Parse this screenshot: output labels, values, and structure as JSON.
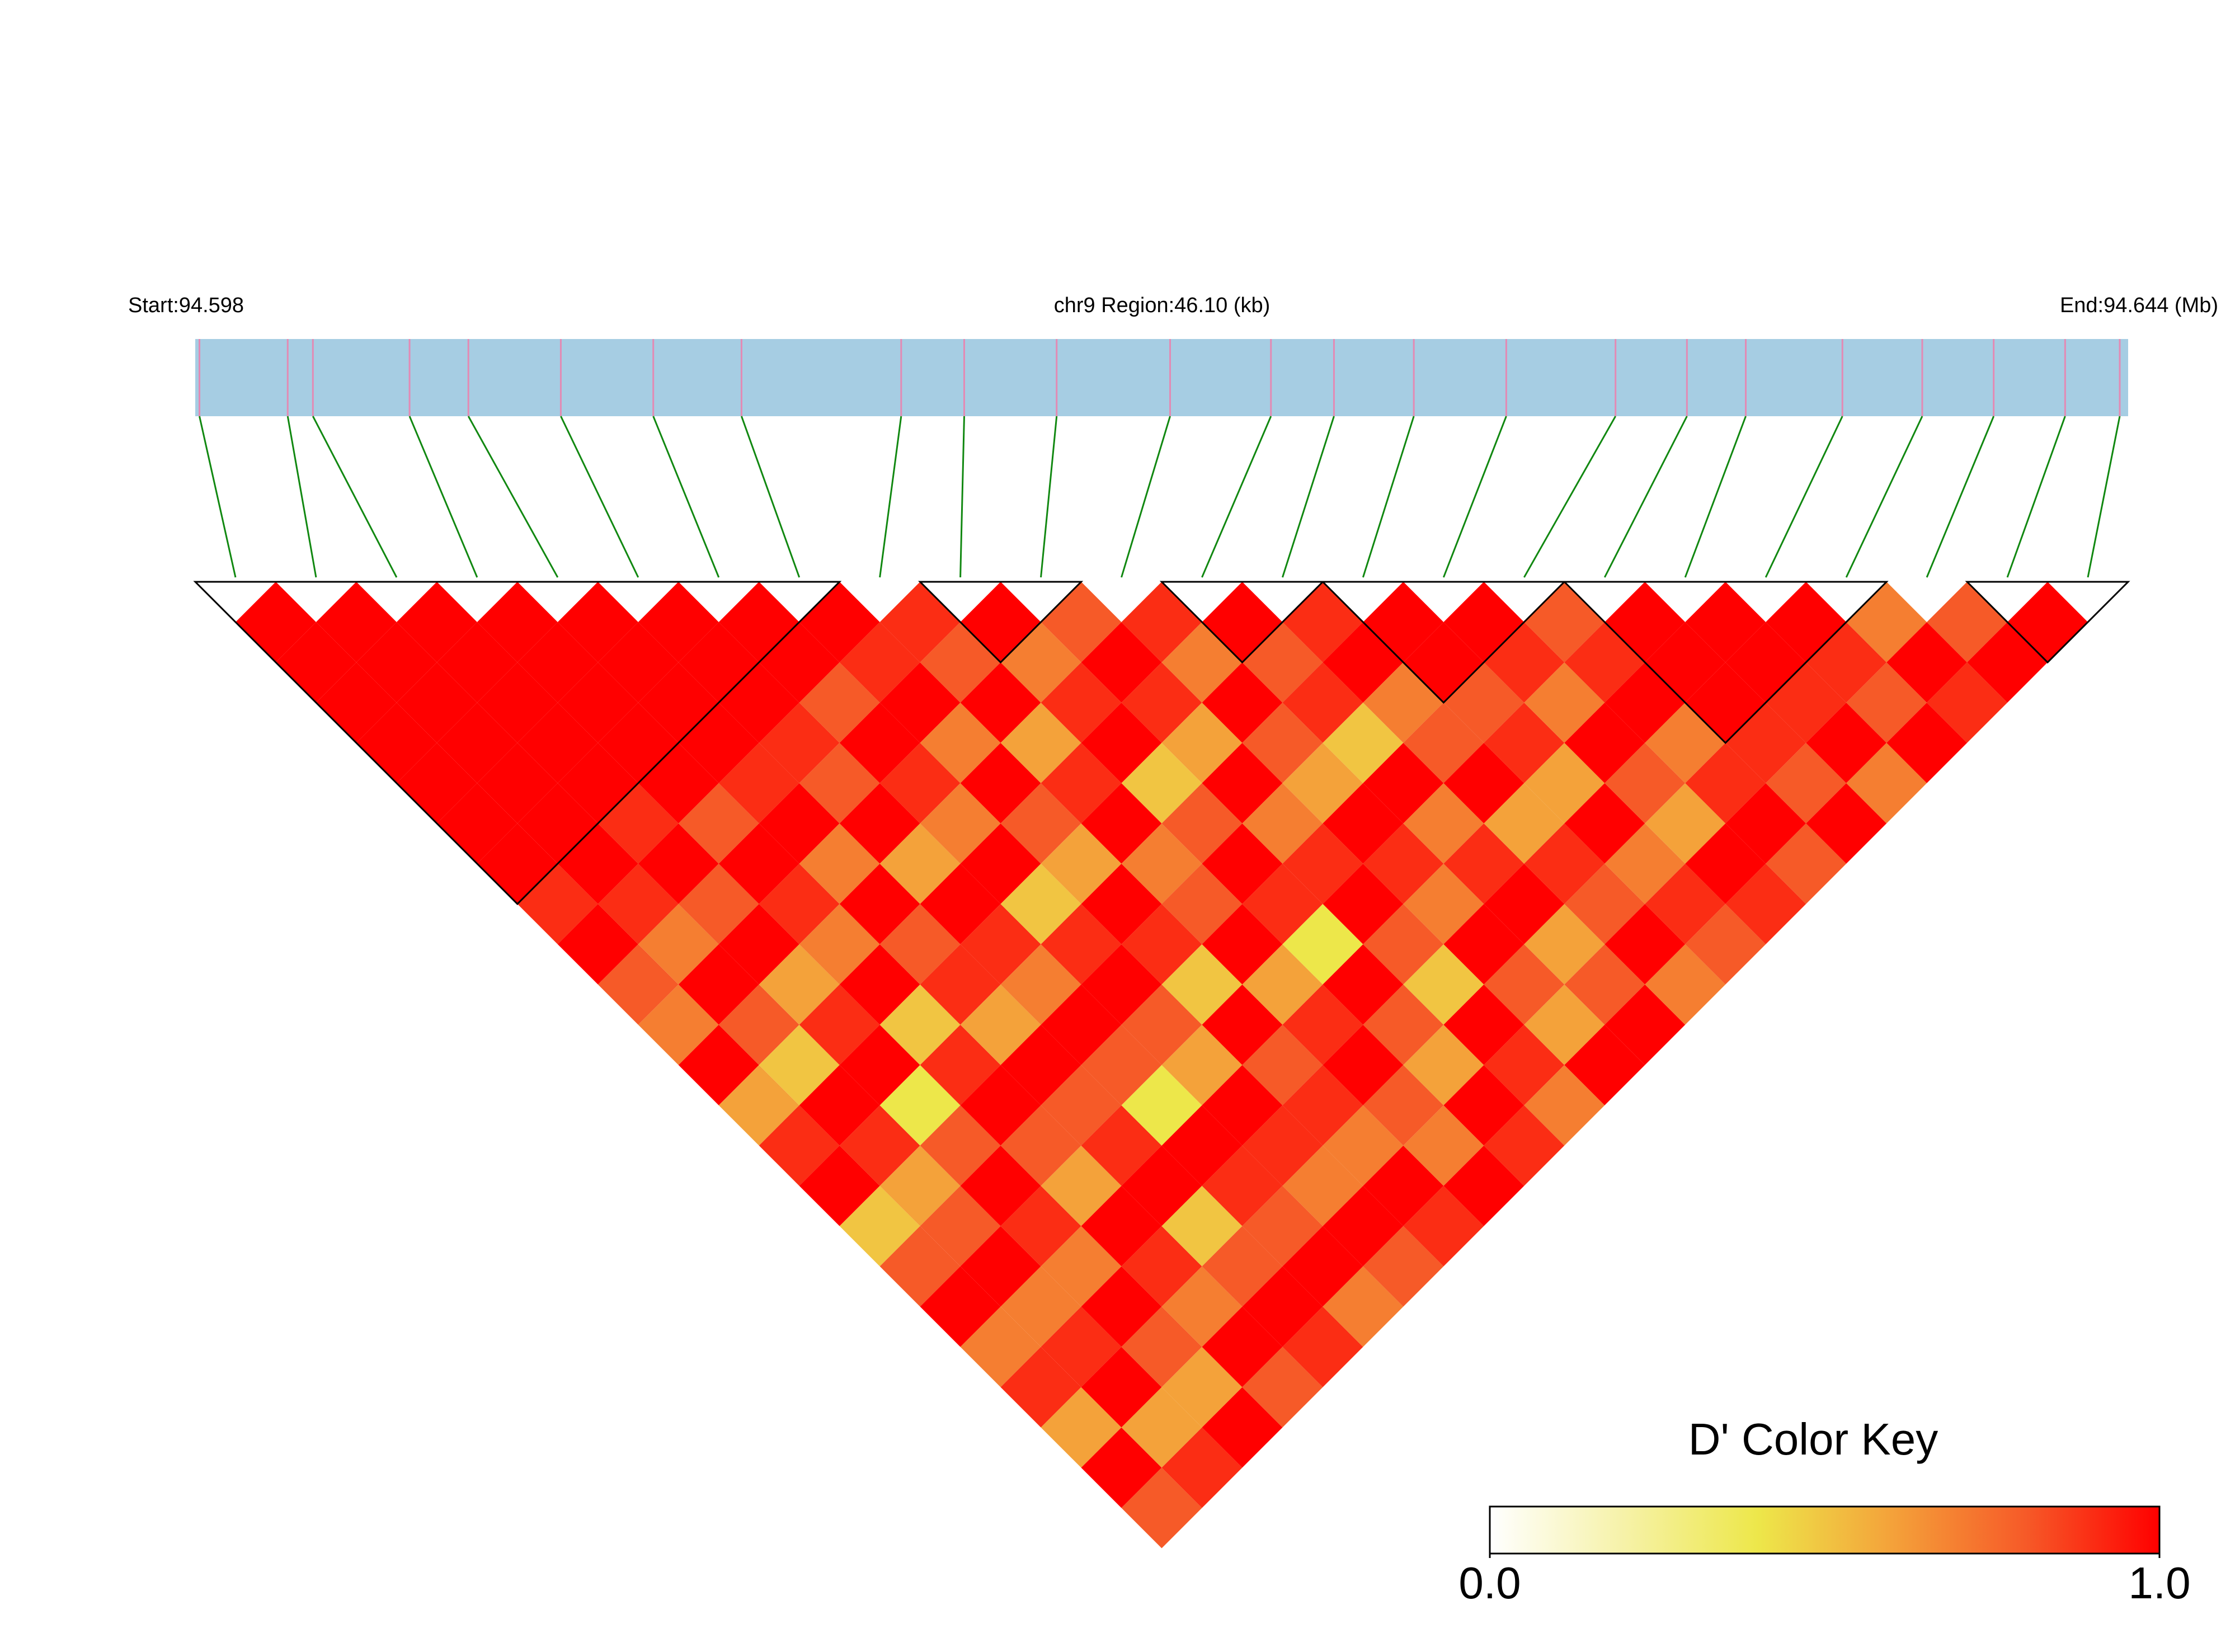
{
  "chart_data": {
    "type": "heatmap",
    "start_label": "Start:94.598",
    "title": "chr9 Region:46.10 (kb)",
    "end_label": "End:94.644 (Mb)",
    "xlim": [
      94.598,
      94.644
    ],
    "x": [
      94.5981,
      94.6002,
      94.6008,
      94.6031,
      94.6045,
      94.6067,
      94.6089,
      94.611,
      94.6148,
      94.6163,
      94.6185,
      94.6212,
      94.6236,
      94.6251,
      94.627,
      94.6292,
      94.6318,
      94.6335,
      94.6349,
      94.6372,
      94.6391,
      94.6408,
      94.6425,
      94.6438
    ],
    "ld": [
      [
        1,
        1,
        1,
        1,
        1,
        1,
        1,
        0.9,
        1,
        0.8,
        0.7,
        1,
        0.6,
        0.9,
        1,
        0.5,
        0.8,
        1,
        0.7,
        0.9,
        0.6,
        1,
        0.8
      ],
      [
        1,
        1,
        1,
        1,
        1,
        1,
        1,
        0.9,
        0.7,
        1,
        0.8,
        0.5,
        1,
        0.9,
        0.6,
        0.8,
        1,
        0.7,
        0.9,
        1,
        0.6,
        0.9
      ],
      [
        1,
        1,
        1,
        1,
        1,
        0.9,
        1,
        0.8,
        1,
        0.6,
        0.9,
        1,
        0.4,
        0.8,
        1,
        0.9,
        0.7,
        1,
        0.8,
        0.6,
        1
      ],
      [
        1,
        1,
        1,
        1,
        1,
        0.8,
        1,
        0.9,
        0.7,
        1,
        0.5,
        0.9,
        1,
        0.8,
        0.6,
        1,
        0.9,
        0.7,
        1,
        0.8
      ],
      [
        1,
        1,
        1,
        1,
        0.9,
        1,
        0.7,
        1,
        0.8,
        0.9,
        0.6,
        1,
        0.8,
        0.9,
        1,
        0.5,
        0.8,
        1,
        0.9
      ],
      [
        1,
        1,
        1,
        0.9,
        0.8,
        1,
        0.6,
        1,
        0.9,
        0.7,
        1,
        0.8,
        0.4,
        1,
        0.9,
        0.8,
        1,
        0.7
      ],
      [
        1,
        1,
        0.8,
        1,
        0.9,
        0.7,
        1,
        0.5,
        0.9,
        1,
        0.8,
        0.6,
        1,
        0.9,
        0.7,
        1,
        0.8
      ],
      [
        1,
        0.9,
        1,
        0.7,
        1,
        0.8,
        0.6,
        1,
        0.9,
        0.5,
        1,
        0.8,
        0.9,
        0.7,
        1,
        0.9
      ],
      [
        0.9,
        0.8,
        1,
        0.6,
        0.9,
        1,
        0.7,
        0.8,
        1,
        0.6,
        0.9,
        1,
        0.8,
        0.7,
        1
      ],
      [
        1,
        0.7,
        0.9,
        1,
        0.5,
        0.8,
        1,
        0.9,
        0.4,
        1,
        0.8,
        0.6,
        1,
        0.9
      ],
      [
        0.8,
        1,
        0.9,
        0.6,
        1,
        0.7,
        0.9,
        1,
        0.8,
        0.5,
        1,
        0.9,
        0.7
      ],
      [
        0.9,
        0.7,
        1,
        0.8,
        0.6,
        1,
        0.9,
        0.7,
        1,
        0.8,
        0.6,
        1
      ],
      [
        1,
        0.8,
        0.9,
        0.5,
        1,
        0.7,
        0.9,
        1,
        0.6,
        0.8,
        1
      ],
      [
        0.9,
        1,
        0.7,
        0.8,
        1,
        0.6,
        0.9,
        0.8,
        1,
        0.7
      ],
      [
        1,
        1,
        0.8,
        0.9,
        0.6,
        1,
        0.7,
        0.9,
        0.8
      ],
      [
        1,
        0.9,
        0.7,
        1,
        0.8,
        0.6,
        1,
        0.9
      ],
      [
        0.8,
        0.9,
        1,
        0.7,
        0.9,
        1,
        0.8
      ],
      [
        1,
        1,
        1,
        0.9,
        0.8,
        1
      ],
      [
        1,
        1,
        0.9,
        1,
        0.7
      ],
      [
        1,
        0.9,
        0.8,
        1
      ],
      [
        0.7,
        1,
        0.9
      ],
      [
        0.8,
        1
      ],
      [
        1
      ]
    ],
    "blocks": [
      [
        0,
        7
      ],
      [
        9,
        10
      ],
      [
        12,
        13
      ],
      [
        14,
        16
      ],
      [
        17,
        20
      ],
      [
        22,
        23
      ]
    ],
    "bar_color": "#a6cde3",
    "snp_color": "#e38ab4",
    "link_color": "#118811",
    "key_title": "D' Color Key",
    "key_colors": [
      "#ffffff",
      "#f6f2a8",
      "#ede74a",
      "#f4a23a",
      "#f65a28",
      "#ff0000"
    ],
    "key_ticks": [
      {
        "value": 0,
        "label": "0.0"
      },
      {
        "value": 1,
        "label": "1.0"
      }
    ]
  }
}
